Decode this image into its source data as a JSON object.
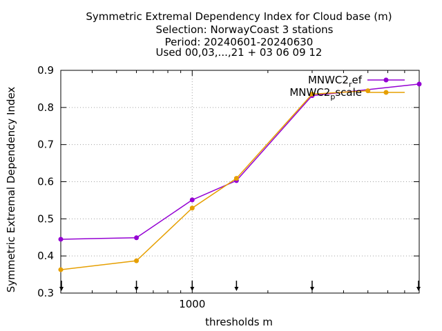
{
  "chart_data": {
    "type": "line",
    "title_lines": [
      "Symmetric Extremal Dependency Index  for Cloud base (m)",
      "Selection: NorwayCoast      3 stations",
      "Period: 20240601-20240630",
      "Used 00,03,...,21 + 03 06 09 12"
    ],
    "xlabel": "thresholds m",
    "ylabel": "Symmetric Extremal Dependency Index",
    "x_scale": "log",
    "xlim": [
      300,
      8000
    ],
    "ylim": [
      0.3,
      0.9
    ],
    "y_ticks": [
      0.3,
      0.4,
      0.5,
      0.6,
      0.7,
      0.8,
      0.9
    ],
    "y_tick_labels": [
      "0.3",
      "0.4",
      "0.5",
      "0.6",
      "0.7",
      "0.8",
      "0.9"
    ],
    "x_tick_labels": [
      {
        "value": 1000,
        "label": "1000"
      }
    ],
    "threshold_arrows": [
      300,
      600,
      1000,
      1500,
      3000,
      8000
    ],
    "grid": true,
    "legend_position": "top-right",
    "series": [
      {
        "name": "MNWC2_ref",
        "label_main": "MNWC2",
        "label_sub": "r",
        "label_rest": "ef",
        "color": "#9400d3",
        "x": [
          300,
          600,
          1000,
          1500,
          3000,
          8000
        ],
        "values": [
          0.445,
          0.449,
          0.551,
          0.603,
          0.832,
          0.863
        ]
      },
      {
        "name": "MNWC2_pscale",
        "label_main": "MNWC2",
        "label_sub": "p",
        "label_rest": "scale",
        "color": "#e69f00",
        "x": [
          300,
          600,
          1000,
          1500,
          3000,
          5000
        ],
        "values": [
          0.363,
          0.387,
          0.529,
          0.609,
          0.836,
          0.845
        ]
      }
    ]
  }
}
